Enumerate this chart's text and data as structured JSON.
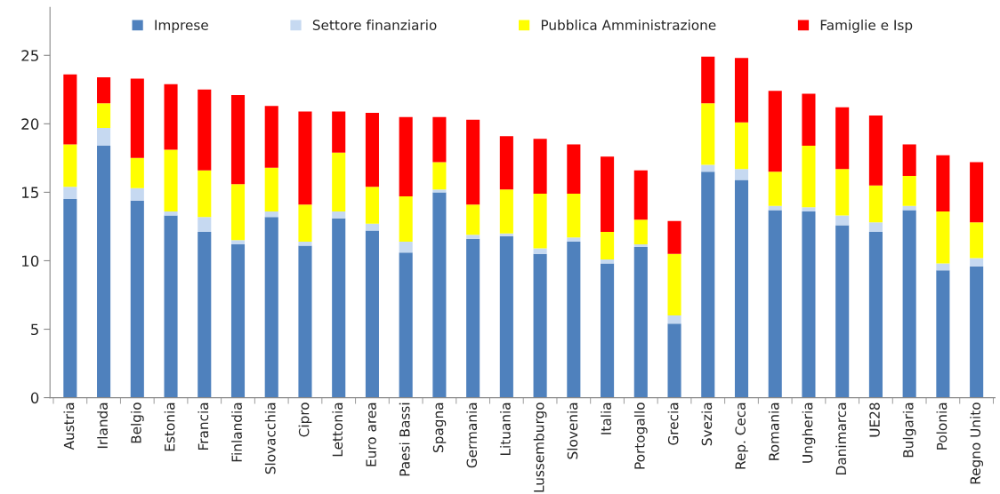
{
  "chart_data": {
    "type": "bar",
    "stacked": true,
    "categories": [
      "Austria",
      "Irlanda",
      "Belgio",
      "Estonia",
      "Francia",
      "Finlandia",
      "Slovacchia",
      "Cipro",
      "Lettonia",
      "Euro area",
      "Paesi Bassi",
      "Spagna",
      "Germania",
      "Lituania",
      "Lussemburgo",
      "Slovenia",
      "Italia",
      "Portogallo",
      "Grecia",
      "Svezia",
      "Rep. Ceca",
      "Romania",
      "Ungheria",
      "Danimarca",
      "UE28",
      "Bulgaria",
      "Polonia",
      "Regno Unito"
    ],
    "series": [
      {
        "name": "Imprese",
        "color": "#4f81bd",
        "values": [
          14.5,
          18.4,
          14.4,
          13.3,
          12.1,
          11.2,
          13.2,
          11.1,
          13.1,
          12.2,
          10.6,
          15.0,
          11.6,
          11.8,
          10.5,
          11.4,
          9.8,
          11.0,
          5.4,
          16.5,
          15.9,
          13.7,
          13.6,
          12.6,
          12.1,
          13.7,
          9.3,
          9.6
        ]
      },
      {
        "name": "Settore finanziario",
        "color": "#c6d9f1",
        "values": [
          0.9,
          1.3,
          0.9,
          0.3,
          1.1,
          0.3,
          0.4,
          0.3,
          0.5,
          0.5,
          0.8,
          0.2,
          0.3,
          0.2,
          0.4,
          0.3,
          0.3,
          0.2,
          0.6,
          0.5,
          0.8,
          0.3,
          0.3,
          0.7,
          0.7,
          0.3,
          0.5,
          0.6
        ]
      },
      {
        "name": "Pubblica Amministrazione",
        "color": "#ffff00",
        "values": [
          3.1,
          1.8,
          2.2,
          4.5,
          3.4,
          4.1,
          3.2,
          2.7,
          4.3,
          2.7,
          3.3,
          2.0,
          2.2,
          3.2,
          4.0,
          3.2,
          2.0,
          1.8,
          4.5,
          4.5,
          3.4,
          2.5,
          4.5,
          3.4,
          2.7,
          2.2,
          3.8,
          2.6
        ]
      },
      {
        "name": "Famiglie e Isp",
        "color": "#ff0000",
        "values": [
          5.1,
          1.9,
          5.8,
          4.8,
          5.9,
          6.5,
          4.5,
          6.8,
          3.0,
          5.4,
          5.8,
          3.3,
          6.2,
          3.9,
          4.0,
          3.6,
          5.5,
          3.6,
          2.4,
          3.4,
          4.7,
          5.9,
          3.8,
          4.5,
          5.1,
          2.3,
          4.1,
          4.4
        ]
      }
    ],
    "ylim": [
      0,
      28.5
    ],
    "yticks": [
      0,
      5,
      10,
      15,
      20,
      25
    ],
    "grid": false,
    "legend": "top"
  }
}
